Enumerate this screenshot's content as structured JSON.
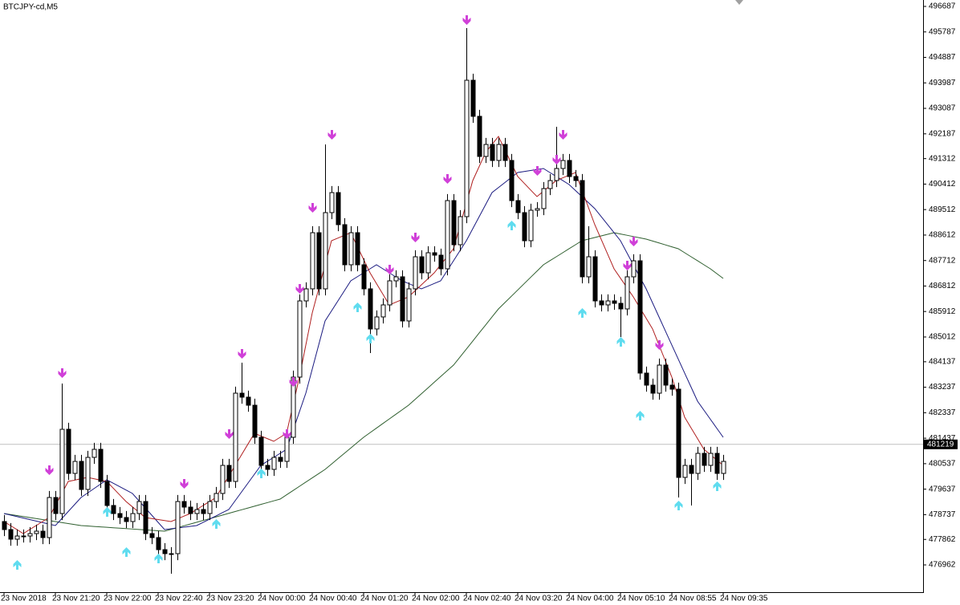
{
  "chart_data": {
    "type": "candlestick",
    "title": "BTCJPY-cd,M5",
    "categories": [
      "23 Nov 2018",
      null,
      null,
      null,
      null,
      null,
      null,
      null,
      "23 Nov 21:20",
      null,
      null,
      null,
      null,
      null,
      null,
      null,
      "23 Nov 22:00",
      null,
      null,
      null,
      null,
      null,
      null,
      null,
      "23 Nov 22:40",
      null,
      null,
      null,
      null,
      null,
      null,
      null,
      "23 Nov 23:20",
      null,
      null,
      null,
      null,
      null,
      null,
      null,
      "24 Nov 00:00",
      null,
      null,
      null,
      null,
      null,
      null,
      null,
      "24 Nov 00:40",
      null,
      null,
      null,
      null,
      null,
      null,
      null,
      "24 Nov 01:20",
      null,
      null,
      null,
      null,
      null,
      null,
      null,
      "24 Nov 02:00",
      null,
      null,
      null,
      null,
      null,
      null,
      null,
      "24 Nov 02:40",
      null,
      null,
      null,
      null,
      null,
      null,
      null,
      "24 Nov 03:20",
      null,
      null,
      null,
      null,
      null,
      null,
      null,
      "24 Nov 04:00",
      null,
      null,
      null,
      null,
      null,
      null,
      null,
      "24 Nov 05:10",
      null,
      null,
      null,
      null,
      null,
      null,
      null,
      "24 Nov 08:55",
      null,
      null,
      null,
      null,
      null,
      null,
      null,
      "24 Nov 09:35"
    ],
    "open": [
      478493,
      478210,
      477870,
      477983,
      477983,
      478068,
      478153,
      477926,
      479343,
      478776,
      481752,
      480193,
      480618,
      479627,
      480760,
      481044,
      479910,
      479060,
      478776,
      478635,
      478493,
      478776,
      479201,
      478068,
      477926,
      477501,
      477359,
      477359,
      479201,
      479003,
      478776,
      478918,
      478776,
      479201,
      479485,
      480477,
      479910,
      483027,
      482886,
      482602,
      481469,
      480477,
      480335,
      480760,
      480618,
      481469,
      483594,
      486286,
      486712,
      488695,
      486712,
      489404,
      490112,
      488979,
      487562,
      488695,
      487562,
      486712,
      485295,
      485720,
      486145,
      486995,
      487137,
      485578,
      486712,
      487845,
      487278,
      487987,
      487902,
      487420,
      489829,
      488270,
      489262,
      494080,
      492805,
      491388,
      491813,
      491246,
      491813,
      491246,
      489829,
      489404,
      488412,
      489489,
      489546,
      490254,
      490537,
      490963,
      491246,
      490679,
      490537,
      487137,
      487845,
      486286,
      486145,
      486286,
      486201,
      486003,
      487137,
      487703,
      483736,
      483311,
      483027,
      484019,
      483311,
      483169,
      480052,
      480477,
      480193,
      480902,
      480477,
      480902,
      480193
    ],
    "high": [
      478723,
      478440,
      478213,
      478213,
      478298,
      478383,
      478383,
      479573,
      479573,
      483367,
      481982,
      480848,
      480848,
      480990,
      481274,
      481274,
      480140,
      479290,
      479006,
      478865,
      479006,
      479431,
      479431,
      478298,
      478156,
      477731,
      477589,
      479431,
      479431,
      479233,
      479148,
      479148,
      479431,
      479715,
      480707,
      480707,
      483257,
      484104,
      483116,
      482832,
      481699,
      480707,
      480990,
      480990,
      481699,
      483824,
      486516,
      486942,
      488925,
      488925,
      491813,
      490342,
      490342,
      489209,
      488925,
      488925,
      487792,
      486942,
      485950,
      486375,
      487225,
      487367,
      487367,
      486942,
      488075,
      488075,
      488217,
      488217,
      488132,
      490059,
      490059,
      489492,
      495922,
      494310,
      493035,
      492043,
      492043,
      492043,
      492043,
      491476,
      490059,
      489634,
      489719,
      489776,
      490484,
      490767,
      492436,
      491476,
      491476,
      490909,
      490767,
      488925,
      488075,
      486516,
      486516,
      486516,
      486431,
      487367,
      487933,
      487933,
      483966,
      483541,
      484249,
      484249,
      483541,
      483399,
      480707,
      480707,
      481132,
      481132,
      481132,
      481132,
      480848
    ],
    "low": [
      477980,
      477640,
      477640,
      477753,
      477753,
      477838,
      477696,
      477696,
      478546,
      478546,
      479963,
      479963,
      479397,
      479397,
      480530,
      479680,
      478830,
      478546,
      478405,
      478263,
      478263,
      478546,
      477838,
      477696,
      477271,
      477129,
      476651,
      477129,
      478773,
      478546,
      478546,
      478546,
      478546,
      478971,
      479255,
      479680,
      479680,
      482656,
      482372,
      481239,
      480247,
      480105,
      480105,
      480388,
      480388,
      481239,
      483364,
      486056,
      486482,
      486482,
      486482,
      489174,
      488749,
      487332,
      487332,
      487332,
      486482,
      484444,
      485065,
      485490,
      485915,
      486765,
      485348,
      485348,
      486482,
      487048,
      487048,
      487672,
      487190,
      487190,
      488040,
      488040,
      489032,
      492575,
      491158,
      491158,
      491016,
      491016,
      491016,
      489599,
      489174,
      488182,
      488182,
      489259,
      489316,
      490024,
      490307,
      490733,
      490449,
      490307,
      486907,
      486907,
      486056,
      485915,
      485915,
      485971,
      485012,
      485773,
      486907,
      483506,
      483081,
      482797,
      482797,
      483081,
      482939,
      479343,
      479822,
      479060,
      479963,
      480247,
      480247,
      479963,
      479963
    ],
    "close": [
      478210,
      477870,
      477983,
      477983,
      478068,
      478153,
      477926,
      479343,
      478776,
      481752,
      480193,
      480618,
      479627,
      480760,
      481044,
      479910,
      479060,
      478776,
      478635,
      478493,
      478776,
      479201,
      478068,
      477926,
      477501,
      477359,
      477359,
      479201,
      479003,
      478776,
      478918,
      478776,
      479201,
      479485,
      480477,
      479910,
      483027,
      482886,
      482602,
      481469,
      480477,
      480335,
      480760,
      480618,
      481469,
      483594,
      486286,
      486712,
      488695,
      486712,
      489404,
      490112,
      488979,
      487562,
      488695,
      487562,
      486712,
      485295,
      485720,
      486145,
      486995,
      487137,
      485578,
      486712,
      487845,
      487278,
      487987,
      487902,
      487420,
      489829,
      488270,
      489262,
      494080,
      492805,
      491388,
      491813,
      491246,
      491813,
      491246,
      489829,
      489404,
      488412,
      489489,
      489546,
      490254,
      490537,
      490963,
      491246,
      490679,
      490537,
      487137,
      487845,
      486286,
      486145,
      486286,
      486201,
      486003,
      487137,
      487703,
      483736,
      483311,
      483027,
      484019,
      483311,
      483169,
      480052,
      480477,
      480193,
      480902,
      480477,
      480902,
      480193,
      480618
    ],
    "up_color": "#ffffff",
    "down_color": "#000000",
    "lines": [
      {
        "color": "#2f5f2f",
        "values": [
          478776,
          478741,
          478705,
          478670,
          478634,
          478599,
          478564,
          478528,
          478493,
          478457,
          478422,
          478386,
          478351,
          478336,
          478321,
          478305,
          478290,
          478275,
          478260,
          478245,
          478229,
          478214,
          478199,
          478184,
          478168,
          478153,
          478216,
          478279,
          478342,
          478405,
          478468,
          478531,
          478594,
          478657,
          478720,
          478783,
          478846,
          478909,
          478972,
          479035,
          479098,
          479161,
          479224,
          479287,
          479437,
          479586,
          479736,
          479886,
          480036,
          480185,
          480335,
          480524,
          480713,
          480902,
          481091,
          481280,
          481469,
          481631,
          481793,
          481955,
          482117,
          482278,
          482440,
          482602,
          482804,
          483007,
          483209,
          483412,
          483614,
          483817,
          484019,
          484302,
          484586,
          484869,
          485153,
          485436,
          485720,
          486003,
          486226,
          486448,
          486671,
          486894,
          487117,
          487339,
          487562,
          487704,
          487845,
          487987,
          488129,
          488270,
          488412,
          488469,
          488525,
          488582,
          488638,
          488695,
          488650,
          488605,
          488559,
          488514,
          488469,
          488401,
          488333,
          488265,
          488197,
          488129,
          487987,
          487845,
          487704,
          487562,
          487420,
          487250,
          487080
        ]
      },
      {
        "color": "#1a1a80",
        "values": [
          478776,
          478723,
          478670,
          478617,
          478564,
          478510,
          478457,
          478404,
          478351,
          478599,
          478847,
          479095,
          479343,
          479499,
          479655,
          479811,
          479967,
          479847,
          479726,
          479606,
          479485,
          479230,
          478975,
          478720,
          478465,
          478210,
          478238,
          478266,
          478295,
          478323,
          478351,
          478464,
          478578,
          478691,
          478805,
          478918,
          479230,
          479542,
          479853,
          480165,
          480477,
          480619,
          480760,
          480902,
          481044,
          481705,
          482366,
          483027,
          483877,
          484728,
          485578,
          485932,
          486286,
          486641,
          486995,
          487137,
          487278,
          487420,
          487562,
          487420,
          487278,
          487137,
          486995,
          486901,
          486806,
          486712,
          486806,
          486901,
          486995,
          487349,
          487704,
          488058,
          488412,
          488837,
          489262,
          489687,
          490112,
          490289,
          490466,
          490644,
          490821,
          490856,
          490892,
          490927,
          490963,
          490821,
          490680,
          490538,
          490396,
          490184,
          489971,
          489759,
          489546,
          489263,
          488979,
          488696,
          488412,
          487987,
          487562,
          487137,
          486712,
          486216,
          485720,
          485223,
          484727,
          484231,
          483735,
          483240,
          482744,
          482425,
          482106,
          481788,
          481469
        ]
      },
      {
        "color": "#b02020",
        "values": [
          478493,
          478351,
          478210,
          478068,
          478210,
          478351,
          478493,
          478635,
          479060,
          479485,
          479910,
          479957,
          480005,
          480052,
          480005,
          479957,
          479910,
          479674,
          479437,
          479201,
          479012,
          478824,
          478635,
          478600,
          478564,
          478529,
          478493,
          478587,
          478682,
          478776,
          478918,
          479060,
          479201,
          479343,
          479721,
          480099,
          480477,
          480855,
          481233,
          481611,
          481516,
          481422,
          481327,
          481469,
          481611,
          482603,
          483594,
          484728,
          485861,
          486711,
          487562,
          488412,
          488506,
          488601,
          488695,
          488223,
          487750,
          487278,
          486900,
          486523,
          486145,
          486239,
          486334,
          486428,
          486641,
          486853,
          487066,
          487278,
          487562,
          487845,
          488129,
          488932,
          489735,
          490538,
          491034,
          491530,
          491813,
          492096,
          491624,
          491151,
          490679,
          490443,
          490207,
          489971,
          490160,
          490349,
          490538,
          490632,
          490727,
          490821,
          490207,
          489593,
          488979,
          488459,
          487940,
          487420,
          487089,
          486759,
          486428,
          486050,
          485673,
          485295,
          484728,
          484161,
          483594,
          482886,
          482177,
          481799,
          481422,
          481044,
          480855,
          480666,
          480477
        ]
      }
    ],
    "down_arrows": {
      "color": "#d040d8",
      "values": [
        null,
        null,
        null,
        null,
        null,
        null,
        null,
        480278,
        null,
        483708,
        null,
        null,
        null,
        null,
        null,
        null,
        null,
        null,
        null,
        null,
        null,
        null,
        null,
        null,
        null,
        null,
        null,
        null,
        479797,
        null,
        null,
        null,
        null,
        null,
        null,
        481554,
        null,
        484388,
        null,
        null,
        null,
        null,
        null,
        null,
        481554,
        483396,
        486683,
        null,
        489546,
        null,
        null,
        492125,
        null,
        null,
        null,
        null,
        null,
        null,
        null,
        null,
        487363,
        null,
        null,
        null,
        488497,
        null,
        null,
        null,
        null,
        490566,
        null,
        null,
        496177,
        null,
        null,
        null,
        null,
        null,
        null,
        null,
        null,
        null,
        null,
        490849,
        null,
        null,
        491246,
        492125,
        null,
        null,
        null,
        null,
        null,
        null,
        null,
        null,
        null,
        487505,
        488355,
        null,
        null,
        null,
        484699,
        null,
        null,
        null,
        null,
        null,
        null,
        null,
        null,
        null,
        null
      ]
    },
    "up_arrows": {
      "color": "#5fdcef",
      "values": [
        null,
        null,
        476991,
        null,
        null,
        null,
        null,
        null,
        null,
        null,
        null,
        null,
        null,
        null,
        null,
        null,
        478861,
        null,
        null,
        477444,
        null,
        null,
        null,
        null,
        477218,
        null,
        null,
        null,
        null,
        null,
        null,
        null,
        null,
        478436,
        null,
        null,
        null,
        null,
        null,
        null,
        480222,
        null,
        null,
        null,
        null,
        null,
        null,
        null,
        null,
        null,
        null,
        null,
        null,
        null,
        null,
        486088,
        null,
        484983,
        null,
        null,
        null,
        null,
        null,
        null,
        null,
        null,
        null,
        null,
        null,
        null,
        null,
        null,
        null,
        null,
        null,
        null,
        null,
        null,
        null,
        488979,
        null,
        null,
        null,
        null,
        null,
        null,
        null,
        null,
        null,
        null,
        485890,
        null,
        null,
        null,
        null,
        null,
        484869,
        null,
        null,
        482262,
        null,
        null,
        null,
        null,
        null,
        479088,
        null,
        null,
        null,
        null,
        null,
        479768,
        null
      ]
    },
    "current_price": 481219,
    "ylim": [
      475999,
      496914
    ],
    "yticks": [
      496687,
      495787,
      494887,
      493987,
      493087,
      492187,
      491312,
      490412,
      489512,
      488612,
      487712,
      486812,
      485912,
      485012,
      484137,
      483237,
      482337,
      481437,
      480537,
      479637,
      478737,
      477862,
      476962
    ]
  }
}
